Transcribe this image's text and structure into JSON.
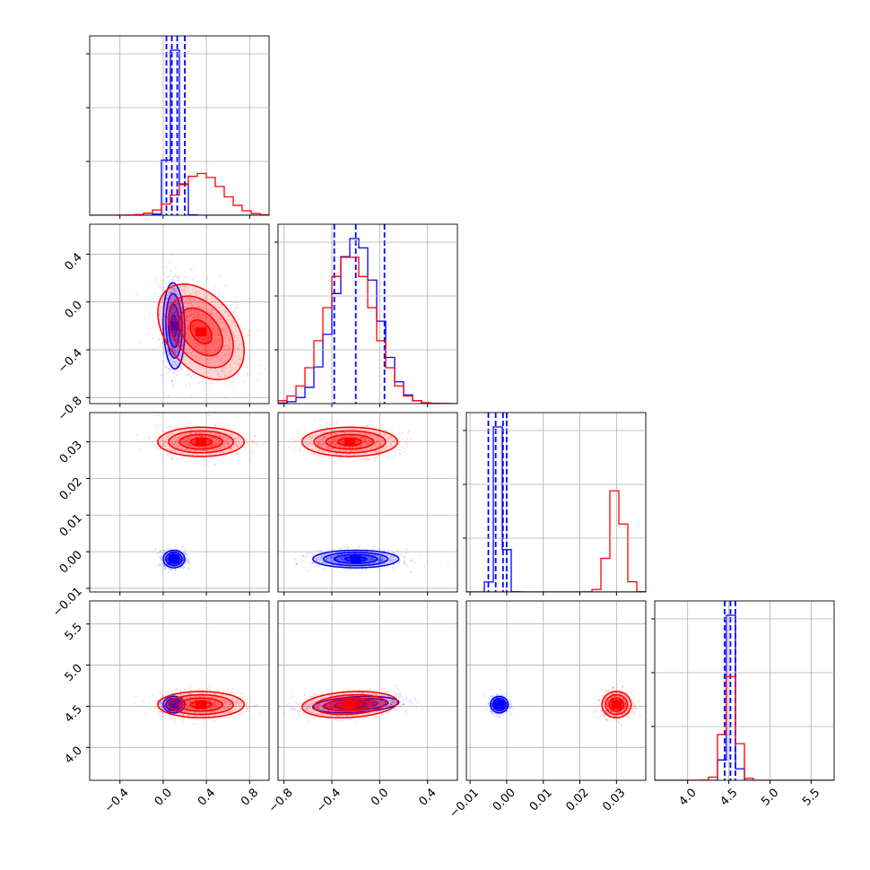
{
  "colors": {
    "series_a": "#0000ff",
    "series_b": "#ff0000",
    "grid": "#b0b0b0",
    "axes": "#000000"
  },
  "chart_data": {
    "type": "corner",
    "grid": true,
    "series": [
      {
        "color": "#0000ff",
        "means": [
          0.1,
          -0.2,
          -0.002,
          4.52
        ],
        "sigmas": [
          0.05,
          0.18,
          0.0012,
          0.05
        ],
        "quantile_lines": [
          [
            0.03,
            0.08,
            0.13,
            0.2
          ],
          [
            -0.38,
            -0.2,
            0.04
          ],
          [
            -0.005,
            -0.003,
            -0.001,
            0.0
          ],
          [
            4.45,
            4.52,
            4.58
          ]
        ],
        "corr": [
          [
            1,
            -0.1,
            0,
            0
          ],
          [
            -0.1,
            1,
            0,
            0.3
          ],
          [
            0,
            0,
            1,
            0
          ],
          [
            0,
            0.3,
            0,
            1
          ]
        ]
      },
      {
        "color": "#ff0000",
        "means": [
          0.35,
          -0.25,
          0.03,
          4.52
        ],
        "sigmas": [
          0.2,
          0.2,
          0.002,
          0.08
        ],
        "quantile_lines": [
          [],
          [],
          [],
          []
        ],
        "corr": [
          [
            1,
            -0.4,
            0,
            0
          ],
          [
            -0.4,
            1,
            0,
            0.2
          ],
          [
            0,
            0,
            1,
            0
          ],
          [
            0,
            0.2,
            0,
            1
          ]
        ]
      }
    ],
    "axes": [
      {
        "range": [
          -0.68,
          0.98
        ],
        "ticks": [
          -0.4,
          0.0,
          0.4,
          0.8
        ],
        "tick_labels": [
          "−0.4",
          "0.0",
          "0.4",
          "0.8"
        ]
      },
      {
        "range": [
          -0.85,
          0.65
        ],
        "ticks": [
          -0.8,
          -0.4,
          0.0,
          0.4
        ],
        "tick_labels": [
          "−0.8",
          "−0.4",
          "0.0",
          "0.4"
        ]
      },
      {
        "range": [
          -0.011,
          0.038
        ],
        "ticks": [
          -0.01,
          0.0,
          0.01,
          0.02,
          0.03
        ],
        "tick_labels": [
          "−0.01",
          "0.00",
          "0.01",
          "0.02",
          "0.03"
        ]
      },
      {
        "range": [
          3.6,
          5.78
        ],
        "ticks": [
          4.0,
          4.5,
          5.0,
          5.5
        ],
        "tick_labels": [
          "4.0",
          "4.5",
          "5.0",
          "5.5"
        ]
      }
    ]
  }
}
